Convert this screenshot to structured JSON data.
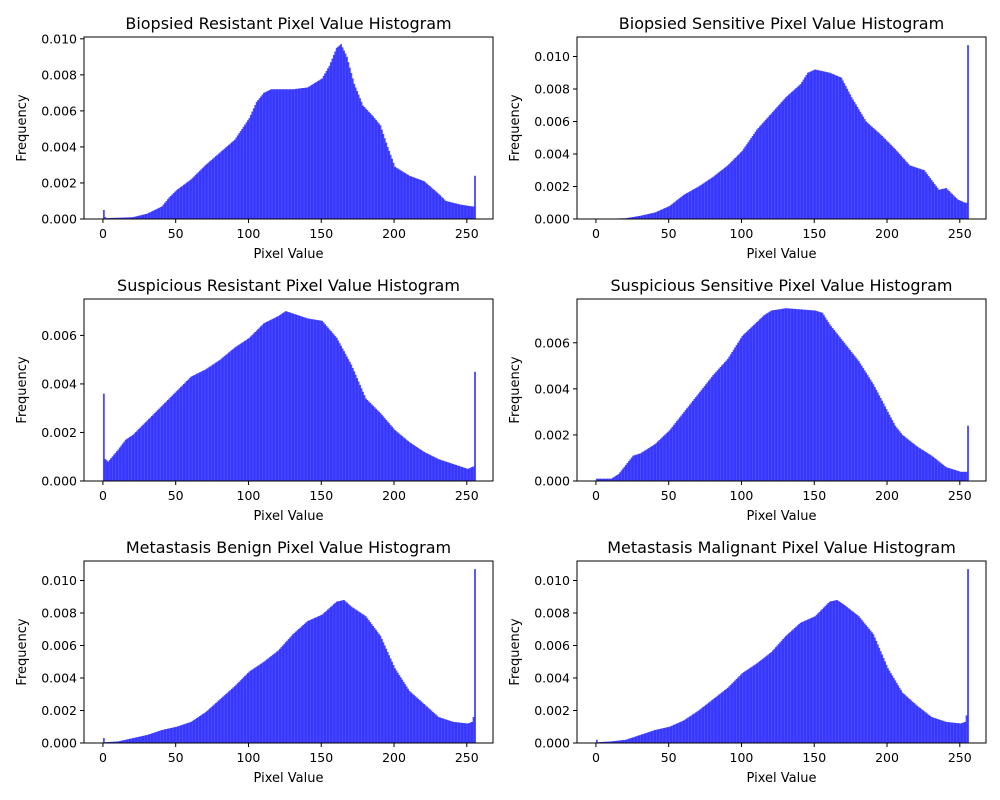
{
  "figure": {
    "bar_color": "#0000ff",
    "bar_alpha": 0.7
  },
  "chart_data": [
    {
      "type": "bar",
      "title": "Biopsied Resistant Pixel Value Histogram",
      "xlabel": "Pixel Value",
      "ylabel": "Frequency",
      "xlim": [
        -13,
        268
      ],
      "ylim": [
        0,
        0.0101
      ],
      "xticks": [
        0,
        50,
        100,
        150,
        200,
        250
      ],
      "xtick_labels": [
        "0",
        "50",
        "100",
        "150",
        "200",
        "250"
      ],
      "yticks": [
        0,
        0.002,
        0.004,
        0.006,
        0.008,
        0.01
      ],
      "ytick_labels": [
        "0.000",
        "0.002",
        "0.004",
        "0.006",
        "0.008",
        "0.010"
      ],
      "bins": {
        "start": 0,
        "end": 256,
        "count": 256
      },
      "grid": false,
      "legend": "none",
      "curve_points": [
        [
          0,
          0.0005
        ],
        [
          1,
          0.0001
        ],
        [
          2,
          5e-05
        ],
        [
          10,
          7e-05
        ],
        [
          20,
          0.0001
        ],
        [
          30,
          0.0003
        ],
        [
          40,
          0.0007
        ],
        [
          45,
          0.0012
        ],
        [
          50,
          0.0016
        ],
        [
          60,
          0.0022
        ],
        [
          70,
          0.003
        ],
        [
          80,
          0.0037
        ],
        [
          90,
          0.0044
        ],
        [
          100,
          0.0056
        ],
        [
          105,
          0.0065
        ],
        [
          110,
          0.007
        ],
        [
          115,
          0.0072
        ],
        [
          130,
          0.0072
        ],
        [
          140,
          0.0073
        ],
        [
          150,
          0.0078
        ],
        [
          155,
          0.0085
        ],
        [
          160,
          0.0095
        ],
        [
          163,
          0.0097
        ],
        [
          167,
          0.009
        ],
        [
          172,
          0.0075
        ],
        [
          178,
          0.0063
        ],
        [
          185,
          0.0057
        ],
        [
          190,
          0.0052
        ],
        [
          195,
          0.004
        ],
        [
          200,
          0.0029
        ],
        [
          210,
          0.0024
        ],
        [
          220,
          0.0021
        ],
        [
          230,
          0.0014
        ],
        [
          235,
          0.001
        ],
        [
          245,
          0.0008
        ],
        [
          253,
          0.0007
        ],
        [
          254,
          0.0007
        ],
        [
          255,
          0.0024
        ]
      ]
    },
    {
      "type": "bar",
      "title": "Biopsied Sensitive Pixel Value Histogram",
      "xlabel": "Pixel Value",
      "ylabel": "Frequency",
      "xlim": [
        -13,
        268
      ],
      "ylim": [
        0,
        0.0112
      ],
      "xticks": [
        0,
        50,
        100,
        150,
        200,
        250
      ],
      "xtick_labels": [
        "0",
        "50",
        "100",
        "150",
        "200",
        "250"
      ],
      "yticks": [
        0,
        0.002,
        0.004,
        0.006,
        0.008,
        0.01
      ],
      "ytick_labels": [
        "0.000",
        "0.002",
        "0.004",
        "0.006",
        "0.008",
        "0.010"
      ],
      "bins": {
        "start": 0,
        "end": 256,
        "count": 256
      },
      "grid": false,
      "legend": "none",
      "curve_points": [
        [
          0,
          0
        ],
        [
          10,
          2e-05
        ],
        [
          20,
          5e-05
        ],
        [
          30,
          0.0002
        ],
        [
          40,
          0.0004
        ],
        [
          50,
          0.0008
        ],
        [
          60,
          0.0015
        ],
        [
          70,
          0.002
        ],
        [
          80,
          0.0026
        ],
        [
          90,
          0.0033
        ],
        [
          100,
          0.0042
        ],
        [
          110,
          0.0055
        ],
        [
          120,
          0.0065
        ],
        [
          130,
          0.0075
        ],
        [
          140,
          0.0083
        ],
        [
          145,
          0.009
        ],
        [
          150,
          0.0092
        ],
        [
          160,
          0.009
        ],
        [
          168,
          0.0087
        ],
        [
          175,
          0.0075
        ],
        [
          185,
          0.006
        ],
        [
          195,
          0.0052
        ],
        [
          205,
          0.0043
        ],
        [
          215,
          0.0033
        ],
        [
          225,
          0.003
        ],
        [
          235,
          0.0018
        ],
        [
          240,
          0.0019
        ],
        [
          248,
          0.0012
        ],
        [
          253,
          0.001
        ],
        [
          254,
          0.001
        ],
        [
          255,
          0.0107
        ]
      ]
    },
    {
      "type": "bar",
      "title": "Suspicious Resistant Pixel Value Histogram",
      "xlabel": "Pixel Value",
      "ylabel": "Frequency",
      "xlim": [
        -13,
        268
      ],
      "ylim": [
        0,
        0.0075
      ],
      "xticks": [
        0,
        50,
        100,
        150,
        200,
        250
      ],
      "xtick_labels": [
        "0",
        "50",
        "100",
        "150",
        "200",
        "250"
      ],
      "yticks": [
        0,
        0.002,
        0.004,
        0.006
      ],
      "ytick_labels": [
        "0.000",
        "0.002",
        "0.004",
        "0.006"
      ],
      "bins": {
        "start": 0,
        "end": 256,
        "count": 256
      },
      "grid": false,
      "legend": "none",
      "curve_points": [
        [
          0,
          0.0036
        ],
        [
          1,
          0.0009
        ],
        [
          3,
          0.0008
        ],
        [
          10,
          0.0013
        ],
        [
          15,
          0.0017
        ],
        [
          20,
          0.0019
        ],
        [
          30,
          0.0025
        ],
        [
          40,
          0.0031
        ],
        [
          50,
          0.0037
        ],
        [
          60,
          0.0043
        ],
        [
          70,
          0.0046
        ],
        [
          80,
          0.005
        ],
        [
          90,
          0.0055
        ],
        [
          100,
          0.0059
        ],
        [
          110,
          0.0065
        ],
        [
          120,
          0.0068
        ],
        [
          125,
          0.007
        ],
        [
          130,
          0.0069
        ],
        [
          140,
          0.0067
        ],
        [
          150,
          0.0066
        ],
        [
          160,
          0.0059
        ],
        [
          170,
          0.0048
        ],
        [
          180,
          0.0034
        ],
        [
          190,
          0.0028
        ],
        [
          200,
          0.0021
        ],
        [
          210,
          0.0016
        ],
        [
          220,
          0.0012
        ],
        [
          230,
          0.0009
        ],
        [
          240,
          0.0007
        ],
        [
          250,
          0.0005
        ],
        [
          254,
          0.0006
        ],
        [
          255,
          0.0045
        ]
      ]
    },
    {
      "type": "bar",
      "title": "Suspicious Sensitive Pixel Value Histogram",
      "xlabel": "Pixel Value",
      "ylabel": "Frequency",
      "xlim": [
        -13,
        268
      ],
      "ylim": [
        0,
        0.0079
      ],
      "xticks": [
        0,
        50,
        100,
        150,
        200,
        250
      ],
      "xtick_labels": [
        "0",
        "50",
        "100",
        "150",
        "200",
        "250"
      ],
      "yticks": [
        0,
        0.002,
        0.004,
        0.006
      ],
      "ytick_labels": [
        "0.000",
        "0.002",
        "0.004",
        "0.006"
      ],
      "bins": {
        "start": 0,
        "end": 256,
        "count": 256
      },
      "grid": false,
      "legend": "none",
      "curve_points": [
        [
          0,
          0.0001
        ],
        [
          10,
          0.0001
        ],
        [
          15,
          0.0003
        ],
        [
          20,
          0.0007
        ],
        [
          25,
          0.0011
        ],
        [
          30,
          0.0012
        ],
        [
          40,
          0.0016
        ],
        [
          50,
          0.0022
        ],
        [
          60,
          0.003
        ],
        [
          70,
          0.0038
        ],
        [
          80,
          0.0046
        ],
        [
          90,
          0.0053
        ],
        [
          100,
          0.0063
        ],
        [
          110,
          0.0069
        ],
        [
          115,
          0.0072
        ],
        [
          120,
          0.0074
        ],
        [
          130,
          0.0075
        ],
        [
          150,
          0.0074
        ],
        [
          155,
          0.0073
        ],
        [
          160,
          0.0068
        ],
        [
          170,
          0.006
        ],
        [
          180,
          0.0052
        ],
        [
          190,
          0.0042
        ],
        [
          200,
          0.003
        ],
        [
          205,
          0.0024
        ],
        [
          210,
          0.002
        ],
        [
          220,
          0.0015
        ],
        [
          230,
          0.0011
        ],
        [
          240,
          0.0006
        ],
        [
          250,
          0.0004
        ],
        [
          254,
          0.0004
        ],
        [
          255,
          0.0024
        ]
      ]
    },
    {
      "type": "bar",
      "title": "Metastasis Benign Pixel Value Histogram",
      "xlabel": "Pixel Value",
      "ylabel": "Frequency",
      "xlim": [
        -13,
        268
      ],
      "ylim": [
        0,
        0.0112
      ],
      "xticks": [
        0,
        50,
        100,
        150,
        200,
        250
      ],
      "xtick_labels": [
        "0",
        "50",
        "100",
        "150",
        "200",
        "250"
      ],
      "yticks": [
        0,
        0.002,
        0.004,
        0.006,
        0.008,
        0.01
      ],
      "ytick_labels": [
        "0.000",
        "0.002",
        "0.004",
        "0.006",
        "0.008",
        "0.010"
      ],
      "bins": {
        "start": 0,
        "end": 256,
        "count": 256
      },
      "grid": false,
      "legend": "none",
      "curve_points": [
        [
          0,
          0.0003
        ],
        [
          1,
          5e-05
        ],
        [
          10,
          0.0001
        ],
        [
          20,
          0.0003
        ],
        [
          30,
          0.0005
        ],
        [
          40,
          0.0008
        ],
        [
          50,
          0.001
        ],
        [
          60,
          0.0013
        ],
        [
          70,
          0.0019
        ],
        [
          80,
          0.0027
        ],
        [
          90,
          0.0035
        ],
        [
          100,
          0.0044
        ],
        [
          110,
          0.005
        ],
        [
          120,
          0.0057
        ],
        [
          130,
          0.0067
        ],
        [
          140,
          0.0075
        ],
        [
          150,
          0.0079
        ],
        [
          160,
          0.0087
        ],
        [
          165,
          0.0088
        ],
        [
          170,
          0.0084
        ],
        [
          180,
          0.0078
        ],
        [
          190,
          0.0066
        ],
        [
          200,
          0.0046
        ],
        [
          210,
          0.0032
        ],
        [
          220,
          0.0024
        ],
        [
          230,
          0.0016
        ],
        [
          240,
          0.0013
        ],
        [
          250,
          0.0012
        ],
        [
          253,
          0.0013
        ],
        [
          254,
          0.0016
        ],
        [
          255,
          0.0107
        ]
      ]
    },
    {
      "type": "bar",
      "title": "Metastasis Malignant Pixel Value Histogram",
      "xlabel": "Pixel Value",
      "ylabel": "Frequency",
      "xlim": [
        -13,
        268
      ],
      "ylim": [
        0,
        0.0112
      ],
      "xticks": [
        0,
        50,
        100,
        150,
        200,
        250
      ],
      "xtick_labels": [
        "0",
        "50",
        "100",
        "150",
        "200",
        "250"
      ],
      "yticks": [
        0,
        0.002,
        0.004,
        0.006,
        0.008,
        0.01
      ],
      "ytick_labels": [
        "0.000",
        "0.002",
        "0.004",
        "0.006",
        "0.008",
        "0.010"
      ],
      "bins": {
        "start": 0,
        "end": 256,
        "count": 256
      },
      "grid": false,
      "legend": "none",
      "curve_points": [
        [
          0,
          0.0002
        ],
        [
          1,
          5e-05
        ],
        [
          10,
          0.0001
        ],
        [
          20,
          0.0002
        ],
        [
          30,
          0.0005
        ],
        [
          40,
          0.0008
        ],
        [
          50,
          0.001
        ],
        [
          60,
          0.0014
        ],
        [
          70,
          0.002
        ],
        [
          80,
          0.0027
        ],
        [
          90,
          0.0034
        ],
        [
          100,
          0.0043
        ],
        [
          110,
          0.0049
        ],
        [
          120,
          0.0056
        ],
        [
          130,
          0.0066
        ],
        [
          140,
          0.0074
        ],
        [
          150,
          0.0078
        ],
        [
          160,
          0.0087
        ],
        [
          165,
          0.0088
        ],
        [
          170,
          0.0085
        ],
        [
          180,
          0.0078
        ],
        [
          190,
          0.0067
        ],
        [
          200,
          0.0046
        ],
        [
          210,
          0.0031
        ],
        [
          220,
          0.0023
        ],
        [
          230,
          0.0016
        ],
        [
          240,
          0.0013
        ],
        [
          250,
          0.0012
        ],
        [
          253,
          0.0013
        ],
        [
          254,
          0.0017
        ],
        [
          255,
          0.0107
        ]
      ]
    }
  ]
}
